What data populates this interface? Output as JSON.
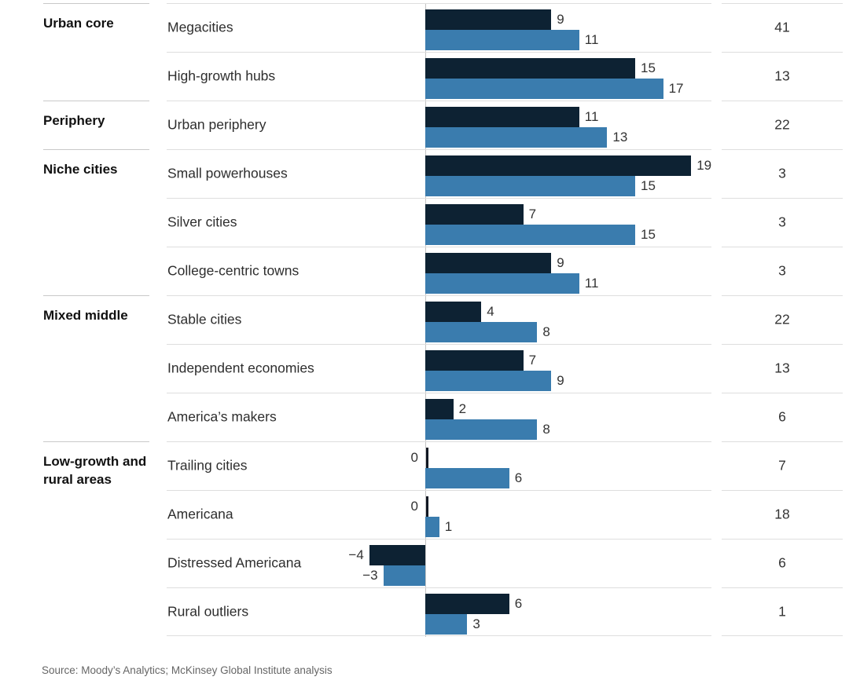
{
  "chart_data": {
    "type": "bar",
    "orientation": "horizontal",
    "categories": [
      "Megacities",
      "High-growth hubs",
      "Urban periphery",
      "Small powerhouses",
      "Silver cities",
      "College-centric towns",
      "Stable cities",
      "Independent economies",
      "America’s makers",
      "Trailing cities",
      "Americana",
      "Distressed Americana",
      "Rural outliers"
    ],
    "series": [
      {
        "name": "dark-navy-series",
        "color": "#0d2233",
        "values": [
          9,
          15,
          11,
          19,
          7,
          9,
          4,
          7,
          2,
          0,
          0,
          -4,
          6
        ],
        "labels": [
          "9",
          "15",
          "11",
          "19",
          "7",
          "9",
          "4",
          "7",
          "2",
          "0",
          "0",
          "−4",
          "6"
        ]
      },
      {
        "name": "blue-series",
        "color": "#3a7cae",
        "values": [
          11,
          17,
          13,
          15,
          15,
          11,
          8,
          9,
          8,
          6,
          1,
          -3,
          3
        ],
        "labels": [
          "11",
          "17",
          "13",
          "15",
          "15",
          "11",
          "8",
          "9",
          "8",
          "6",
          "1",
          "−3",
          "3"
        ]
      }
    ],
    "right_column": [
      "41",
      "13",
      "22",
      "3",
      "3",
      "3",
      "22",
      "13",
      "6",
      "7",
      "18",
      "6",
      "1"
    ],
    "group_labels": [
      {
        "label": "Urban core",
        "start_row": 0
      },
      {
        "label": "Periphery",
        "start_row": 2
      },
      {
        "label": "Niche cities",
        "start_row": 3
      },
      {
        "label": "Mixed middle",
        "start_row": 6
      },
      {
        "label": "Low-growth and rural areas",
        "start_row": 9
      }
    ],
    "x_axis": {
      "zero_line": true,
      "range": [
        -5,
        20
      ],
      "grid": false
    },
    "legend": "none-visible"
  },
  "colors": {
    "dark_bar": "#0d2233",
    "blue_bar": "#3a7cae",
    "divider": "#dedede",
    "group_divider": "#c9c9c9",
    "axis_line": "#c3c3c3",
    "zero_tick": "#111722"
  },
  "source": "Source: Moody’s Analytics; McKinsey Global Institute analysis"
}
